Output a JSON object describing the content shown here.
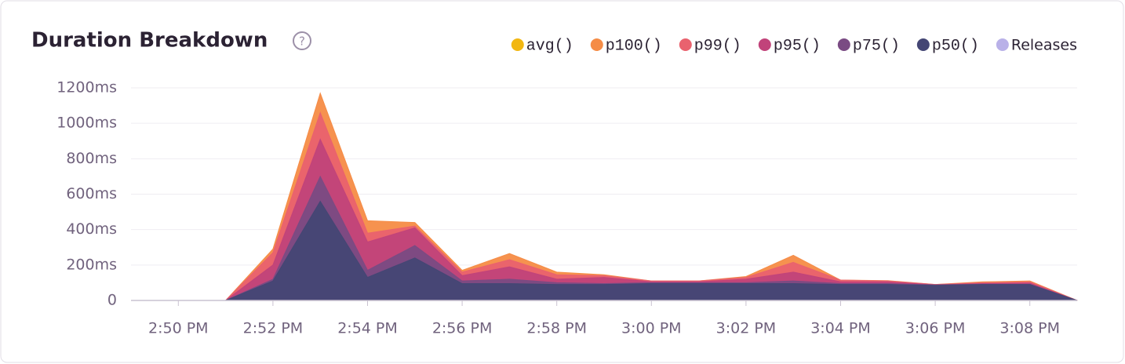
{
  "chart_data": {
    "type": "area",
    "title": "Duration Breakdown",
    "help_icon": "?",
    "x": [
      "2:49 PM",
      "2:50 PM",
      "2:51 PM",
      "2:52 PM",
      "2:53 PM",
      "2:54 PM",
      "2:55 PM",
      "2:56 PM",
      "2:57 PM",
      "2:58 PM",
      "2:59 PM",
      "3:00 PM",
      "3:01 PM",
      "3:02 PM",
      "3:03 PM",
      "3:04 PM",
      "3:05 PM",
      "3:06 PM",
      "3:07 PM",
      "3:08 PM",
      "3:09 PM"
    ],
    "xticks": [
      "2:50 PM",
      "2:52 PM",
      "2:54 PM",
      "2:56 PM",
      "2:58 PM",
      "3:00 PM",
      "3:02 PM",
      "3:04 PM",
      "3:06 PM",
      "3:08 PM"
    ],
    "series": [
      {
        "name": "avg()",
        "color": "#f2b712",
        "values": [
          0,
          0,
          0,
          100,
          450,
          140,
          210,
          95,
          100,
          90,
          90,
          95,
          95,
          95,
          100,
          90,
          90,
          85,
          90,
          90,
          0
        ]
      },
      {
        "name": "p100()",
        "color": "#f58c46",
        "values": [
          0,
          0,
          0,
          290,
          1170,
          450,
          440,
          170,
          265,
          160,
          145,
          110,
          110,
          135,
          255,
          115,
          112,
          90,
          105,
          110,
          0
        ]
      },
      {
        "name": "p99()",
        "color": "#e9626e",
        "values": [
          0,
          0,
          0,
          270,
          1060,
          380,
          420,
          160,
          230,
          145,
          140,
          110,
          110,
          130,
          215,
          115,
          110,
          90,
          100,
          105,
          0
        ]
      },
      {
        "name": "p95()",
        "color": "#c1437a",
        "values": [
          0,
          0,
          0,
          200,
          910,
          330,
          410,
          140,
          190,
          120,
          130,
          105,
          105,
          120,
          160,
          105,
          105,
          88,
          95,
          98,
          0
        ]
      },
      {
        "name": "p75()",
        "color": "#7a4b83",
        "values": [
          0,
          0,
          0,
          120,
          700,
          170,
          310,
          110,
          120,
          100,
          95,
          100,
          100,
          100,
          110,
          95,
          95,
          88,
          92,
          92,
          0
        ]
      },
      {
        "name": "p50()",
        "color": "#444674",
        "values": [
          0,
          0,
          0,
          110,
          560,
          130,
          240,
          95,
          95,
          90,
          90,
          95,
          95,
          95,
          95,
          90,
          90,
          85,
          90,
          90,
          0
        ]
      }
    ],
    "releases": {
      "name": "Releases",
      "color": "#b9b1e8"
    },
    "ylim": [
      0,
      1200
    ],
    "yticks": [
      0,
      {
        "value": 200,
        "label": "200ms"
      },
      {
        "value": 400,
        "label": "400ms"
      },
      {
        "value": 600,
        "label": "600ms"
      },
      {
        "value": 800,
        "label": "800ms"
      },
      {
        "value": 1000,
        "label": "1000ms"
      },
      {
        "value": 1200,
        "label": "1200ms"
      }
    ],
    "grid": true
  }
}
